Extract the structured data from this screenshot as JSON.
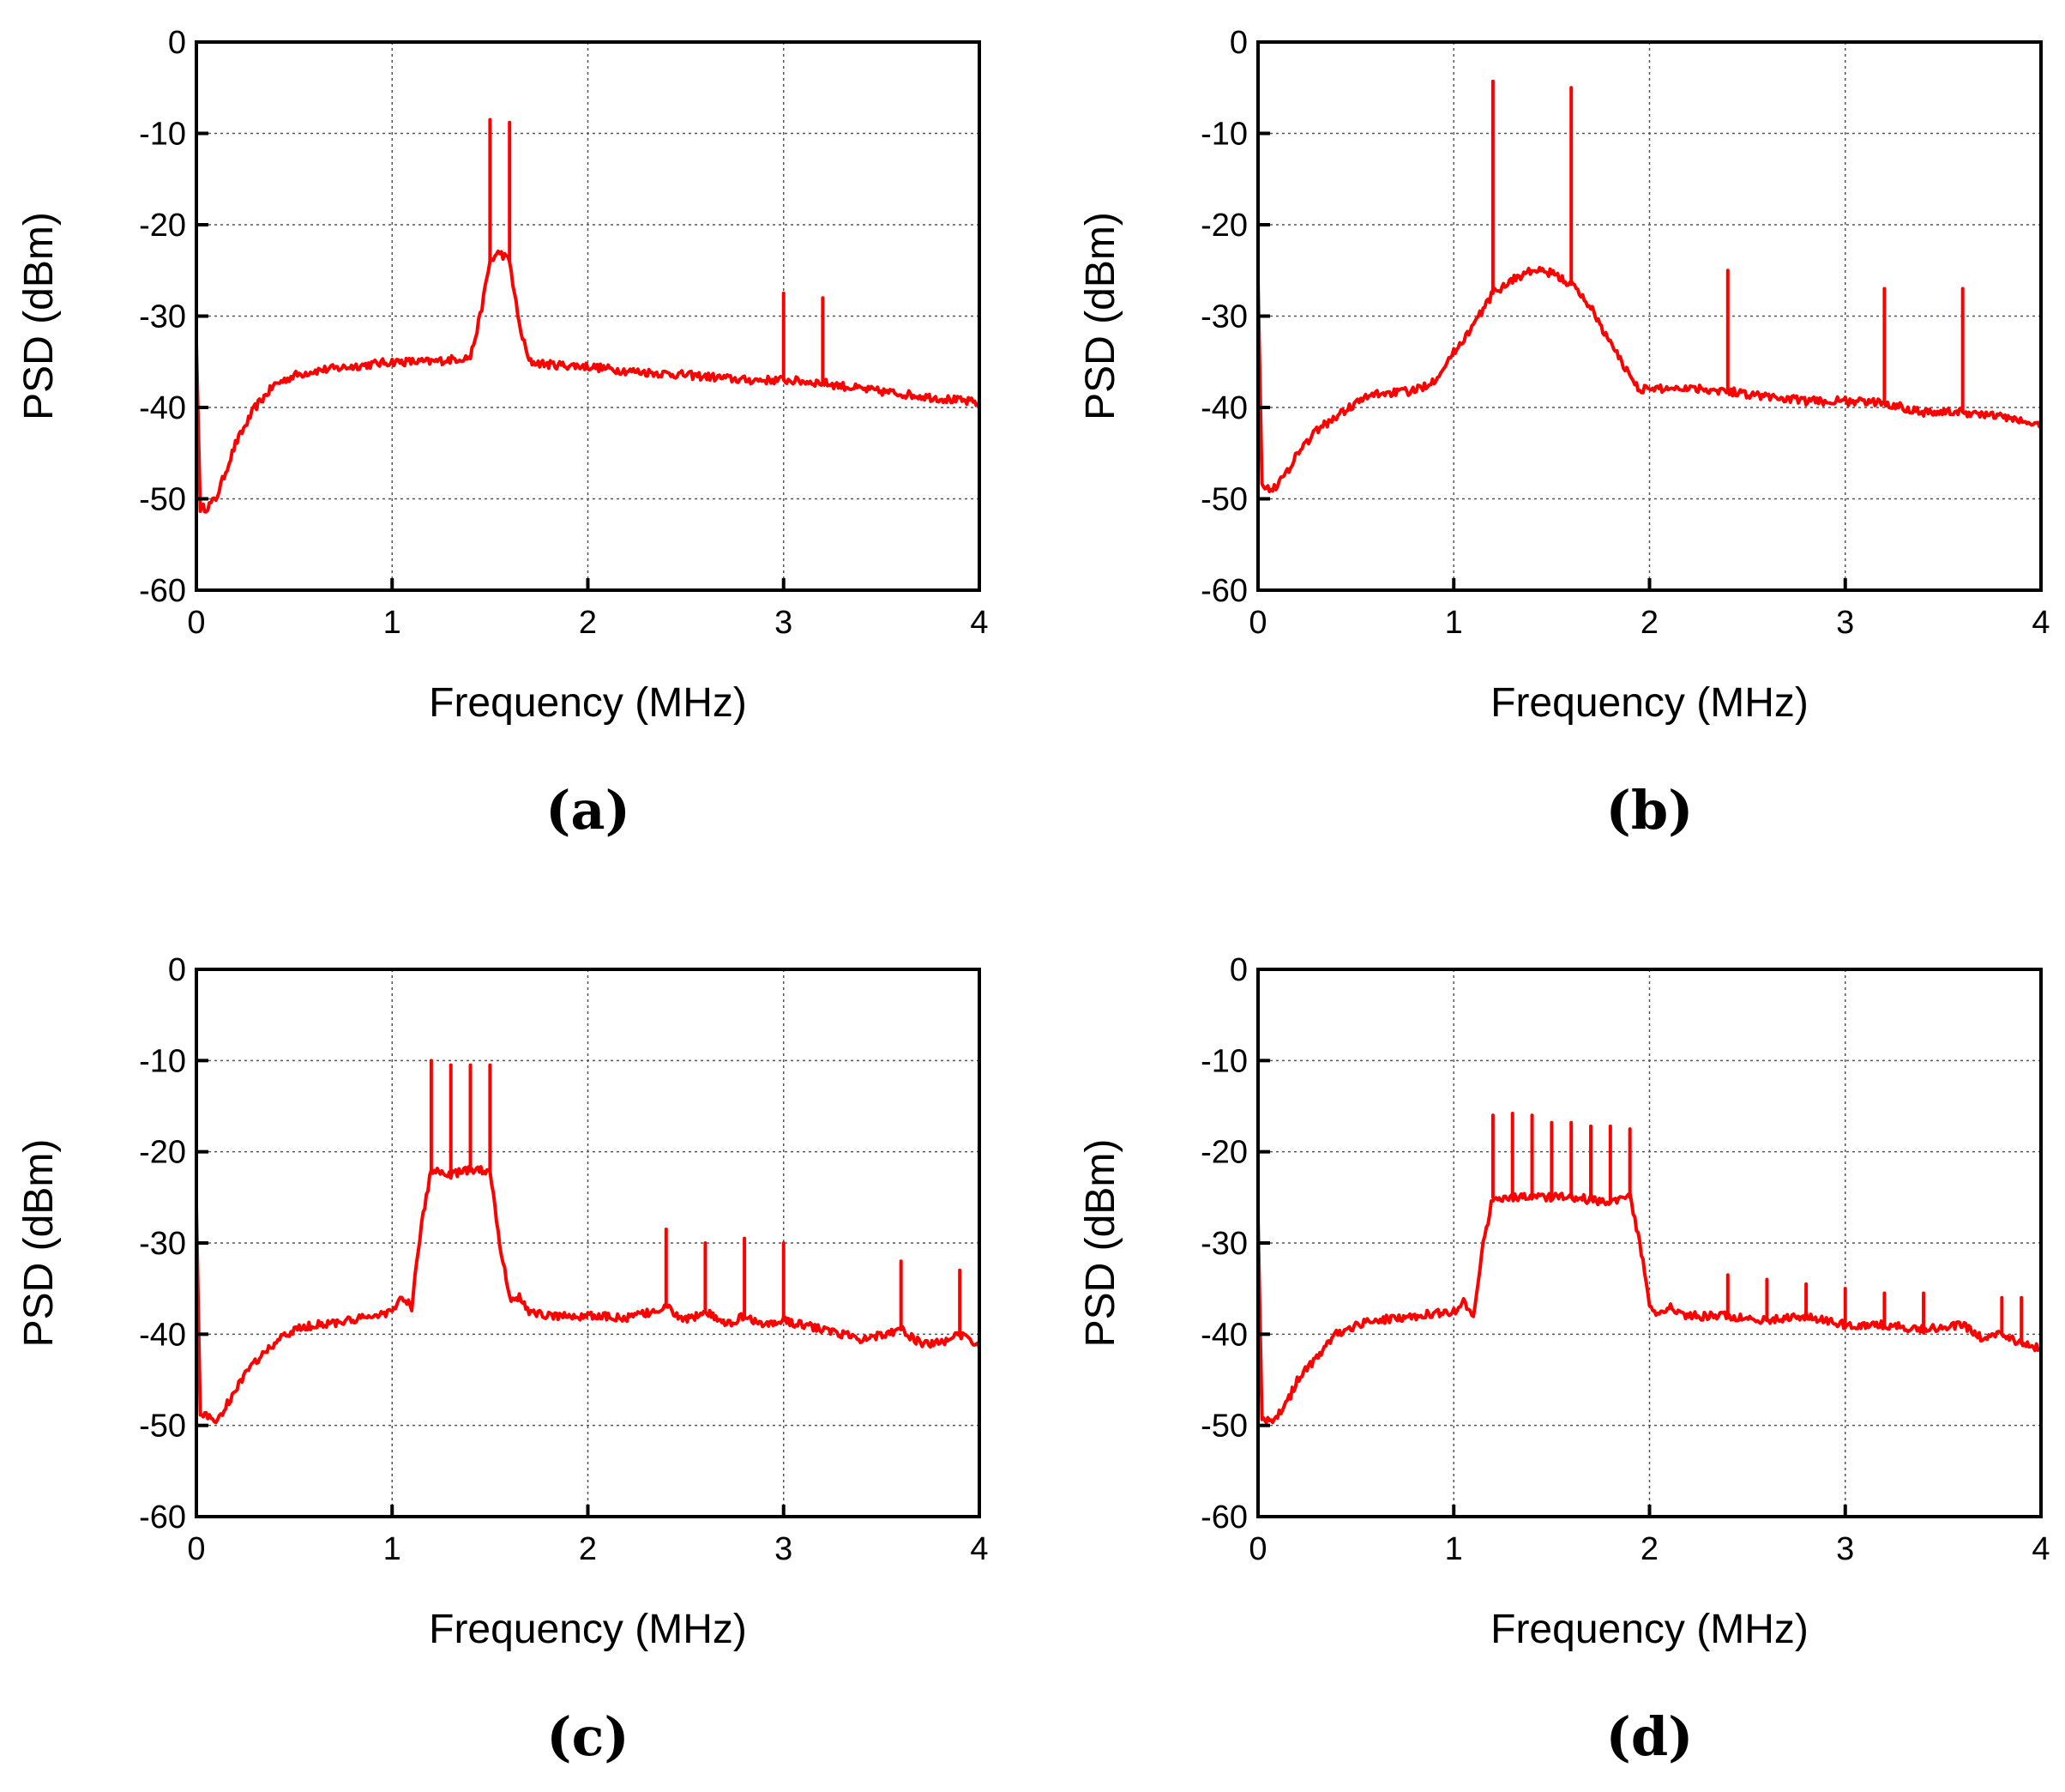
{
  "figure": {
    "trace_color": "#ff0000",
    "xlabel": "Frequency (MHz)",
    "ylabel": "PSD (dBm)"
  },
  "chart_data": [
    {
      "type": "line",
      "panel_label": "(a)",
      "xlabel": "Frequency (MHz)",
      "ylabel": "PSD (dBm)",
      "xlim": [
        0,
        4
      ],
      "ylim": [
        -60,
        0
      ],
      "xticks": [
        "0",
        "1",
        "2",
        "3",
        "4"
      ],
      "yticks": [
        "0",
        "-10",
        "-20",
        "-30",
        "-40",
        "-50",
        "-60"
      ],
      "grid": true,
      "series": [
        {
          "name": "PSD",
          "x": [
            0,
            0.02,
            0.05,
            0.1,
            0.15,
            0.2,
            0.3,
            0.4,
            0.5,
            0.6,
            0.8,
            1.0,
            1.2,
            1.4,
            1.45,
            1.5,
            1.55,
            1.6,
            1.65,
            1.7,
            1.8,
            2.0,
            2.2,
            2.4,
            2.6,
            2.8,
            3.0,
            3.2,
            3.4,
            3.6,
            3.8,
            4.0
          ],
          "y": [
            -33,
            -51,
            -51,
            -50,
            -47,
            -44,
            -40,
            -37.5,
            -36.5,
            -36,
            -35.5,
            -35,
            -35,
            -34.5,
            -30,
            -24,
            -23,
            -24,
            -31,
            -35,
            -35.3,
            -35.5,
            -36,
            -36.3,
            -36.6,
            -37,
            -37,
            -37.3,
            -38,
            -38.5,
            -39,
            -39.5
          ]
        }
      ],
      "spikes": [
        {
          "x": 1.5,
          "y": -8.5
        },
        {
          "x": 1.6,
          "y": -8.8
        },
        {
          "x": 3.0,
          "y": -27.5
        },
        {
          "x": 3.2,
          "y": -28
        }
      ]
    },
    {
      "type": "line",
      "panel_label": "(b)",
      "xlabel": "Frequency (MHz)",
      "ylabel": "PSD (dBm)",
      "xlim": [
        0,
        4
      ],
      "ylim": [
        -60,
        0
      ],
      "xticks": [
        "0",
        "1",
        "2",
        "3",
        "4"
      ],
      "yticks": [
        "0",
        "-10",
        "-20",
        "-30",
        "-40",
        "-50",
        "-60"
      ],
      "grid": true,
      "series": [
        {
          "name": "PSD",
          "x": [
            0,
            0.02,
            0.05,
            0.1,
            0.15,
            0.2,
            0.3,
            0.4,
            0.5,
            0.6,
            0.8,
            0.9,
            1.0,
            1.1,
            1.2,
            1.3,
            1.4,
            1.5,
            1.6,
            1.7,
            1.8,
            1.9,
            1.95,
            2.0,
            2.2,
            2.4,
            2.6,
            2.8,
            3.0,
            3.2,
            3.4,
            3.6,
            3.8,
            4.0
          ],
          "y": [
            -26,
            -48,
            -49,
            -48.5,
            -47,
            -45,
            -42.5,
            -41,
            -39.5,
            -38.5,
            -38.2,
            -37,
            -34,
            -31,
            -27.5,
            -26,
            -25,
            -25.3,
            -26.5,
            -29,
            -33,
            -36.5,
            -38,
            -38,
            -37.8,
            -38.2,
            -38.8,
            -39.3,
            -39.3,
            -39.5,
            -40.5,
            -40.5,
            -41,
            -42
          ]
        }
      ],
      "spikes": [
        {
          "x": 1.2,
          "y": -4.3
        },
        {
          "x": 1.6,
          "y": -5
        },
        {
          "x": 2.4,
          "y": -25
        },
        {
          "x": 3.2,
          "y": -27
        },
        {
          "x": 3.6,
          "y": -27
        }
      ]
    },
    {
      "type": "line",
      "panel_label": "(c)",
      "xlabel": "Frequency (MHz)",
      "ylabel": "PSD (dBm)",
      "xlim": [
        0,
        4
      ],
      "ylim": [
        -60,
        0
      ],
      "xticks": [
        "0",
        "1",
        "2",
        "3",
        "4"
      ],
      "yticks": [
        "0",
        "-10",
        "-20",
        "-30",
        "-40",
        "-50",
        "-60"
      ],
      "grid": true,
      "series": [
        {
          "name": "PSD",
          "x": [
            0,
            0.02,
            0.05,
            0.1,
            0.15,
            0.2,
            0.3,
            0.4,
            0.5,
            0.6,
            0.8,
            1.0,
            1.05,
            1.1,
            1.15,
            1.2,
            1.3,
            1.4,
            1.5,
            1.55,
            1.6,
            1.65,
            1.7,
            1.8,
            2.0,
            2.2,
            2.35,
            2.4,
            2.5,
            2.6,
            2.7,
            2.8,
            2.9,
            3.0,
            3.2,
            3.4,
            3.6,
            3.7,
            3.8,
            3.9,
            4.0
          ],
          "y": [
            -26,
            -48.5,
            -49,
            -49.5,
            -48,
            -46,
            -43,
            -41,
            -39.5,
            -39,
            -38.5,
            -37.5,
            -36,
            -37,
            -28,
            -22,
            -22.5,
            -22,
            -22,
            -30,
            -36,
            -36,
            -37.5,
            -38,
            -38,
            -38.2,
            -37.5,
            -37,
            -38.5,
            -37.5,
            -39,
            -38,
            -39,
            -38.5,
            -39.5,
            -40.5,
            -39.5,
            -41,
            -41,
            -40,
            -41.5
          ]
        }
      ],
      "spikes": [
        {
          "x": 1.2,
          "y": -10
        },
        {
          "x": 1.3,
          "y": -10.5
        },
        {
          "x": 1.4,
          "y": -10.5
        },
        {
          "x": 1.5,
          "y": -10.5
        },
        {
          "x": 2.4,
          "y": -28.5
        },
        {
          "x": 2.6,
          "y": -30
        },
        {
          "x": 2.8,
          "y": -29.5
        },
        {
          "x": 3.0,
          "y": -30
        },
        {
          "x": 3.6,
          "y": -32
        },
        {
          "x": 3.9,
          "y": -33
        }
      ]
    },
    {
      "type": "line",
      "panel_label": "(d)",
      "xlabel": "Frequency (MHz)",
      "ylabel": "PSD (dBm)",
      "xlim": [
        0,
        4
      ],
      "ylim": [
        -60,
        0
      ],
      "xticks": [
        "0",
        "1",
        "2",
        "3",
        "4"
      ],
      "yticks": [
        "0",
        "-10",
        "-20",
        "-30",
        "-40",
        "-50",
        "-60"
      ],
      "grid": true,
      "series": [
        {
          "name": "PSD",
          "x": [
            0,
            0.02,
            0.05,
            0.1,
            0.15,
            0.2,
            0.3,
            0.4,
            0.5,
            0.6,
            0.8,
            1.0,
            1.05,
            1.1,
            1.15,
            1.2,
            1.4,
            1.6,
            1.8,
            1.9,
            1.95,
            2.0,
            2.05,
            2.1,
            2.2,
            2.4,
            2.6,
            2.8,
            3.0,
            3.2,
            3.4,
            3.6,
            3.7,
            3.8,
            3.9,
            4.0
          ],
          "y": [
            -27,
            -49,
            -49.5,
            -49,
            -47.5,
            -45,
            -42.5,
            -40,
            -39,
            -38.5,
            -38,
            -37.5,
            -36.5,
            -38,
            -30,
            -25,
            -25,
            -25,
            -25.5,
            -25,
            -30,
            -36.5,
            -38,
            -37,
            -38,
            -38,
            -38.5,
            -38,
            -39,
            -39,
            -39.5,
            -39,
            -40.5,
            -40,
            -41,
            -41.5
          ]
        }
      ],
      "spikes": [
        {
          "x": 1.2,
          "y": -16
        },
        {
          "x": 1.3,
          "y": -15.8
        },
        {
          "x": 1.4,
          "y": -16
        },
        {
          "x": 1.5,
          "y": -16.8
        },
        {
          "x": 1.6,
          "y": -16.8
        },
        {
          "x": 1.7,
          "y": -17.2
        },
        {
          "x": 1.8,
          "y": -17.2
        },
        {
          "x": 1.9,
          "y": -17.5
        },
        {
          "x": 2.4,
          "y": -33.5
        },
        {
          "x": 2.6,
          "y": -34
        },
        {
          "x": 2.8,
          "y": -34.5
        },
        {
          "x": 3.0,
          "y": -35
        },
        {
          "x": 3.2,
          "y": -35.5
        },
        {
          "x": 3.4,
          "y": -35.5
        },
        {
          "x": 3.8,
          "y": -36
        },
        {
          "x": 3.9,
          "y": -36
        }
      ]
    }
  ]
}
